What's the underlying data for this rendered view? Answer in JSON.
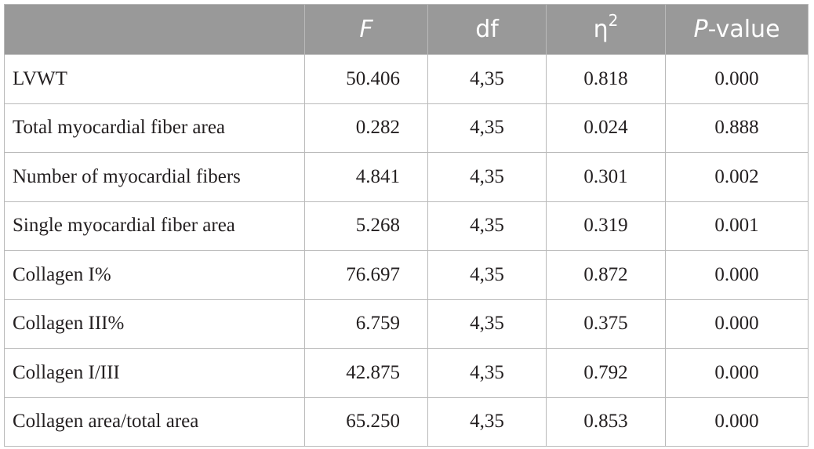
{
  "table": {
    "headers": {
      "corner": "",
      "f": "F",
      "df": "df",
      "eta_symbol": "η",
      "eta_sup": "2",
      "p_italic": "P",
      "p_rest": "-value"
    },
    "rows": [
      {
        "label": "LVWT",
        "f": "50.406",
        "df": "4,35",
        "eta2": "0.818",
        "p": "0.000"
      },
      {
        "label": "Total myocardial fiber area",
        "f": "0.282",
        "df": "4,35",
        "eta2": "0.024",
        "p": "0.888"
      },
      {
        "label": "Number of myocardial fibers",
        "f": "4.841",
        "df": "4,35",
        "eta2": "0.301",
        "p": "0.002"
      },
      {
        "label": "Single myocardial fiber area",
        "f": "5.268",
        "df": "4,35",
        "eta2": "0.319",
        "p": "0.001"
      },
      {
        "label": "Collagen I%",
        "f": "76.697",
        "df": "4,35",
        "eta2": "0.872",
        "p": "0.000"
      },
      {
        "label": "Collagen III%",
        "f": "6.759",
        "df": "4,35",
        "eta2": "0.375",
        "p": "0.000"
      },
      {
        "label": "Collagen I/III",
        "f": "42.875",
        "df": "4,35",
        "eta2": "0.792",
        "p": "0.000"
      },
      {
        "label": "Collagen area/total area",
        "f": "65.250",
        "df": "4,35",
        "eta2": "0.853",
        "p": "0.000"
      }
    ]
  }
}
